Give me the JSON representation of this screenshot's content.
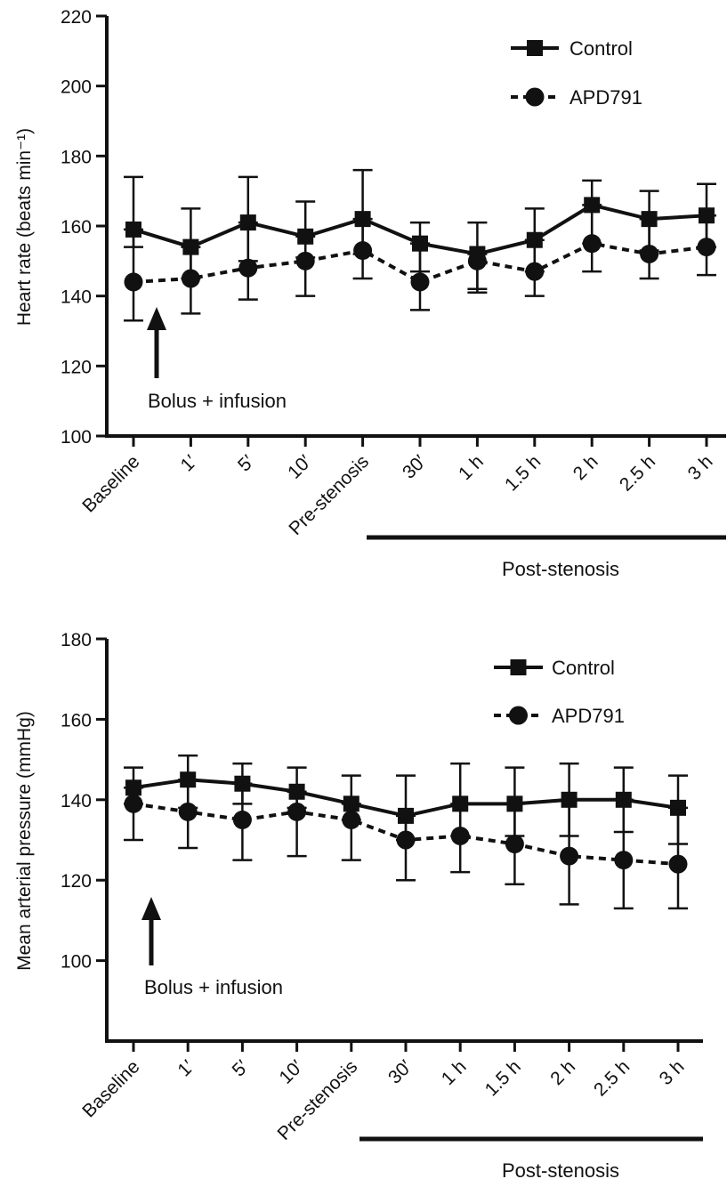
{
  "charts": [
    {
      "ylabel": "Heart rate (beats min⁻¹)",
      "ymin": 100,
      "ymax": 220,
      "yticks": [
        "100",
        "120",
        "140",
        "160",
        "180",
        "200",
        "220"
      ],
      "annotation": "Bolus + infusion",
      "group_label": "Post-stenosis",
      "legend": [
        {
          "label": "Control"
        },
        {
          "label": "APD791"
        }
      ]
    },
    {
      "ylabel": "Mean arterial pressure (mmHg)",
      "ymin": 80,
      "ymax": 180,
      "yticks": [
        "100",
        "120",
        "140",
        "160",
        "180"
      ],
      "annotation": "Bolus + infusion",
      "group_label": "Post-stenosis",
      "legend": [
        {
          "label": "Control"
        },
        {
          "label": "APD791"
        }
      ]
    }
  ],
  "chart_data": [
    {
      "type": "line",
      "title": "",
      "xlabel": "",
      "ylabel": "Heart rate (beats min⁻¹)",
      "categories": [
        "Baseline",
        "1′",
        "5′",
        "10′",
        "Pre-stenosis",
        "30′",
        "1 h",
        "1.5 h",
        "2 h",
        "2.5 h",
        "3 h"
      ],
      "ylim": [
        100,
        220
      ],
      "legend_position": "top-right",
      "series": [
        {
          "name": "Control",
          "marker": "square",
          "line_style": "solid",
          "values": [
            159,
            154,
            161,
            157,
            162,
            155,
            152,
            156,
            166,
            162,
            163
          ],
          "err_upper": [
            174,
            165,
            174,
            167,
            176,
            161,
            161,
            165,
            173,
            170,
            172
          ],
          "err_lower": [
            154,
            145,
            150,
            151,
            152,
            147,
            142,
            147,
            155,
            153,
            154
          ]
        },
        {
          "name": "APD791",
          "marker": "circle",
          "line_style": "dashed",
          "values": [
            144,
            145,
            148,
            150,
            153,
            144,
            150,
            147,
            155,
            152,
            154
          ],
          "err_upper": [
            159,
            154,
            161,
            157,
            162,
            155,
            152,
            156,
            166,
            162,
            163
          ],
          "err_lower": [
            133,
            135,
            139,
            140,
            145,
            136,
            141,
            140,
            147,
            145,
            146
          ]
        }
      ]
    },
    {
      "type": "line",
      "title": "",
      "xlabel": "",
      "ylabel": "Mean arterial pressure (mmHg)",
      "categories": [
        "Baseline",
        "1′",
        "5′",
        "10′",
        "Pre-stenosis",
        "30′",
        "1 h",
        "1.5 h",
        "2 h",
        "2.5 h",
        "3 h"
      ],
      "ylim": [
        80,
        180
      ],
      "legend_position": "top-right",
      "series": [
        {
          "name": "Control",
          "marker": "square",
          "line_style": "solid",
          "values": [
            143,
            145,
            144,
            142,
            139,
            136,
            139,
            139,
            140,
            140,
            138
          ],
          "err_upper": [
            148,
            151,
            149,
            148,
            146,
            146,
            149,
            148,
            149,
            148,
            146
          ],
          "err_lower": [
            139,
            138,
            139,
            138,
            135,
            130,
            131,
            131,
            131,
            132,
            129
          ]
        },
        {
          "name": "APD791",
          "marker": "circle",
          "line_style": "dashed",
          "values": [
            139,
            137,
            135,
            137,
            135,
            130,
            131,
            129,
            126,
            125,
            124
          ],
          "err_upper": [
            143,
            145,
            144,
            142,
            139,
            136,
            139,
            139,
            140,
            140,
            138
          ],
          "err_lower": [
            130,
            128,
            125,
            126,
            125,
            120,
            122,
            119,
            114,
            113,
            113
          ]
        }
      ]
    }
  ]
}
